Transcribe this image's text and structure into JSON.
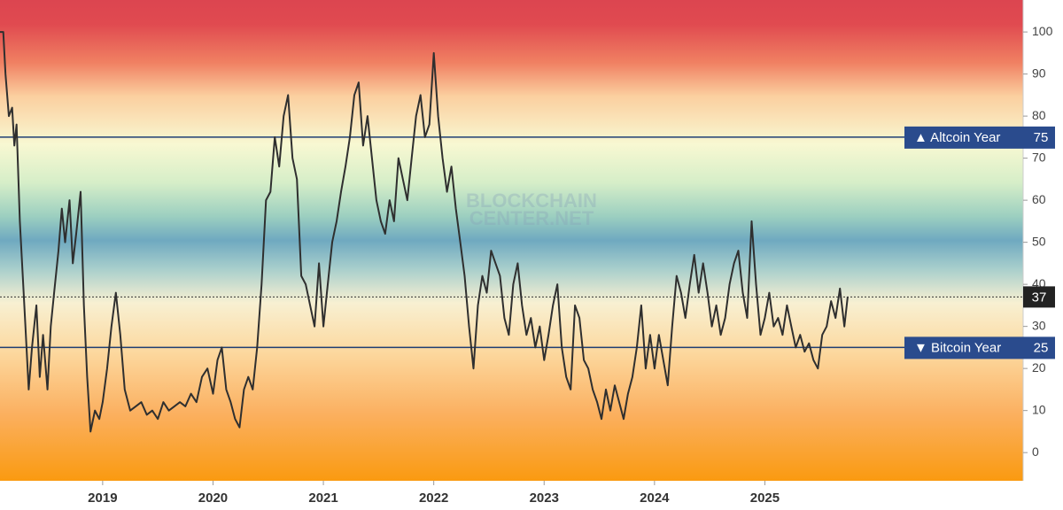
{
  "chart_data": {
    "type": "line",
    "watermark": [
      "BLOCKCHAIN",
      "CENTER.NET"
    ],
    "x": [
      2018.07,
      2018.1,
      2018.12,
      2018.15,
      2018.18,
      2018.2,
      2018.22,
      2018.25,
      2018.28,
      2018.3,
      2018.33,
      2018.36,
      2018.4,
      2018.43,
      2018.46,
      2018.5,
      2018.53,
      2018.56,
      2018.6,
      2018.63,
      2018.66,
      2018.7,
      2018.73,
      2018.76,
      2018.8,
      2018.83,
      2018.86,
      2018.89,
      2018.93,
      2018.97,
      2019.0,
      2019.04,
      2019.08,
      2019.12,
      2019.16,
      2019.2,
      2019.25,
      2019.3,
      2019.35,
      2019.4,
      2019.45,
      2019.5,
      2019.55,
      2019.6,
      2019.65,
      2019.7,
      2019.75,
      2019.8,
      2019.85,
      2019.9,
      2019.95,
      2020.0,
      2020.04,
      2020.08,
      2020.12,
      2020.16,
      2020.2,
      2020.24,
      2020.28,
      2020.32,
      2020.36,
      2020.4,
      2020.44,
      2020.48,
      2020.52,
      2020.56,
      2020.6,
      2020.64,
      2020.68,
      2020.72,
      2020.76,
      2020.8,
      2020.84,
      2020.88,
      2020.92,
      2020.96,
      2021.0,
      2021.04,
      2021.08,
      2021.12,
      2021.16,
      2021.2,
      2021.24,
      2021.28,
      2021.32,
      2021.36,
      2021.4,
      2021.44,
      2021.48,
      2021.52,
      2021.56,
      2021.6,
      2021.64,
      2021.68,
      2021.72,
      2021.76,
      2021.8,
      2021.84,
      2021.88,
      2021.92,
      2021.96,
      2022.0,
      2022.04,
      2022.08,
      2022.12,
      2022.16,
      2022.2,
      2022.24,
      2022.28,
      2022.32,
      2022.36,
      2022.4,
      2022.44,
      2022.48,
      2022.52,
      2022.56,
      2022.6,
      2022.64,
      2022.68,
      2022.72,
      2022.76,
      2022.8,
      2022.84,
      2022.88,
      2022.92,
      2022.96,
      2023.0,
      2023.04,
      2023.08,
      2023.12,
      2023.16,
      2023.2,
      2023.24,
      2023.28,
      2023.32,
      2023.36,
      2023.4,
      2023.44,
      2023.48,
      2023.52,
      2023.56,
      2023.6,
      2023.64,
      2023.68,
      2023.72,
      2023.76,
      2023.8,
      2023.84,
      2023.88,
      2023.92,
      2023.96,
      2024.0,
      2024.04,
      2024.08,
      2024.12,
      2024.16,
      2024.2,
      2024.24,
      2024.28,
      2024.32,
      2024.36,
      2024.4,
      2024.44,
      2024.48,
      2024.52,
      2024.56,
      2024.6,
      2024.64,
      2024.68,
      2024.72,
      2024.76,
      2024.8,
      2024.84,
      2024.88,
      2024.92,
      2024.96,
      2025.0,
      2025.04,
      2025.08,
      2025.12,
      2025.16,
      2025.2,
      2025.24,
      2025.28,
      2025.32,
      2025.36,
      2025.4,
      2025.44,
      2025.48,
      2025.52,
      2025.56,
      2025.6,
      2025.64,
      2025.68,
      2025.72,
      2025.75
    ],
    "values": [
      100,
      100,
      90,
      80,
      82,
      73,
      78,
      55,
      40,
      30,
      15,
      25,
      35,
      18,
      28,
      15,
      30,
      38,
      48,
      58,
      50,
      60,
      45,
      52,
      62,
      35,
      18,
      5,
      10,
      8,
      12,
      20,
      30,
      38,
      28,
      15,
      10,
      11,
      12,
      9,
      10,
      8,
      12,
      10,
      11,
      12,
      11,
      14,
      12,
      18,
      20,
      14,
      22,
      25,
      15,
      12,
      8,
      6,
      15,
      18,
      15,
      25,
      40,
      60,
      62,
      75,
      68,
      80,
      85,
      70,
      65,
      42,
      40,
      35,
      30,
      45,
      30,
      40,
      50,
      55,
      62,
      68,
      75,
      85,
      88,
      73,
      80,
      70,
      60,
      55,
      52,
      60,
      55,
      70,
      65,
      60,
      70,
      80,
      85,
      75,
      78,
      95,
      80,
      70,
      62,
      68,
      58,
      50,
      42,
      30,
      20,
      35,
      42,
      38,
      48,
      45,
      42,
      32,
      28,
      40,
      45,
      35,
      28,
      32,
      25,
      30,
      22,
      28,
      35,
      40,
      25,
      18,
      15,
      35,
      32,
      22,
      20,
      15,
      12,
      8,
      15,
      10,
      16,
      12,
      8,
      14,
      18,
      25,
      35,
      20,
      28,
      20,
      28,
      22,
      16,
      30,
      42,
      38,
      32,
      40,
      47,
      38,
      45,
      38,
      30,
      35,
      28,
      32,
      40,
      45,
      48,
      38,
      32,
      55,
      40,
      28,
      32,
      38,
      30,
      32,
      28,
      35,
      30,
      25,
      28,
      24,
      26,
      22,
      20,
      28,
      30,
      36,
      32,
      39,
      30,
      37
    ],
    "color": "#2f2f2f",
    "xlim": [
      2018.07,
      2027.34
    ],
    "xticks": [
      2019,
      2020,
      2021,
      2022,
      2023,
      2024,
      2025
    ],
    "ylim": [
      -6.7,
      107.6
    ],
    "yticks": [
      0,
      10,
      20,
      30,
      40,
      50,
      60,
      70,
      80,
      90,
      100
    ],
    "reference_lines": [
      {
        "value": 75,
        "label": "▲ Altcoin Year"
      },
      {
        "value": 25,
        "label": "▼ Bitcoin Year"
      }
    ]
  }
}
